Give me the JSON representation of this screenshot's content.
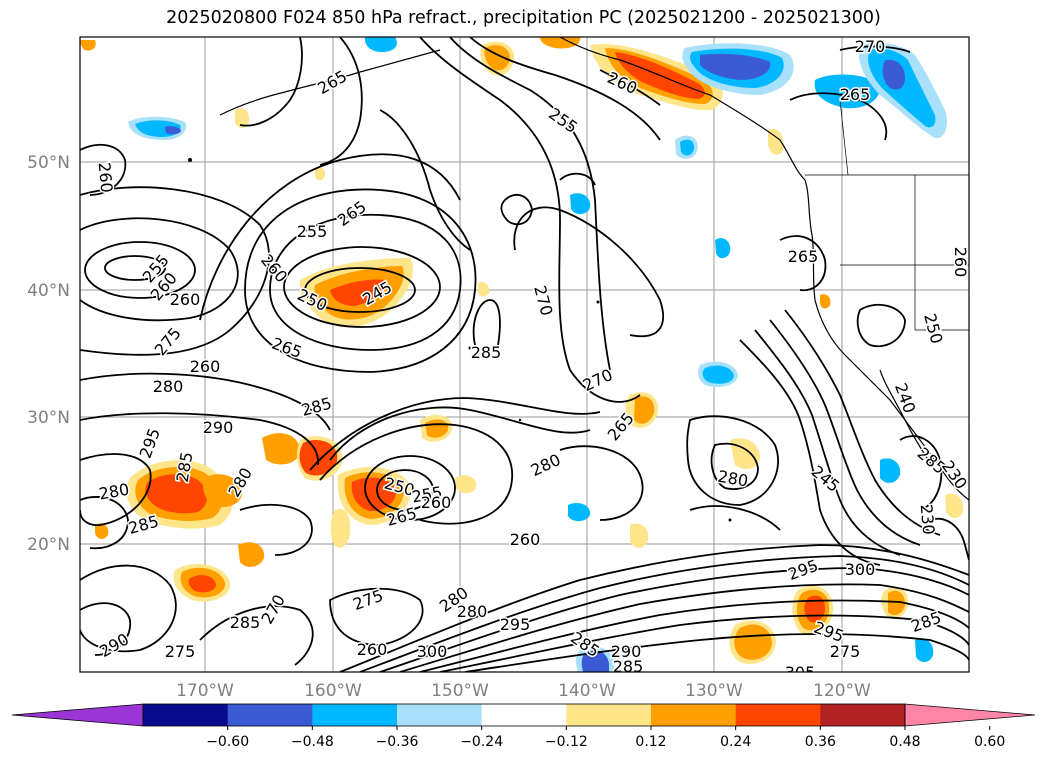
{
  "title": "2025020800 F024 850 hPa refract., precipitation PC (2025021200 - 2025021300)",
  "map": {
    "lon_labels": [
      "170°W",
      "160°W",
      "150°W",
      "140°W",
      "130°W",
      "120°W"
    ],
    "lat_labels": [
      "50°N",
      "40°N",
      "30°N",
      "20°N"
    ],
    "contour_labels": [
      {
        "text": "265"
      },
      {
        "text": "255"
      },
      {
        "text": "260"
      },
      {
        "text": "270"
      },
      {
        "text": "265"
      },
      {
        "text": "260"
      },
      {
        "text": "260"
      },
      {
        "text": "265"
      },
      {
        "text": "255"
      },
      {
        "text": "255"
      },
      {
        "text": "260"
      },
      {
        "text": "260"
      },
      {
        "text": "250"
      },
      {
        "text": "245"
      },
      {
        "text": "270"
      },
      {
        "text": "285"
      },
      {
        "text": "275"
      },
      {
        "text": "260"
      },
      {
        "text": "265"
      },
      {
        "text": "280"
      },
      {
        "text": "285"
      },
      {
        "text": "270"
      },
      {
        "text": "265"
      },
      {
        "text": "290"
      },
      {
        "text": "295"
      },
      {
        "text": "285"
      },
      {
        "text": "280"
      },
      {
        "text": "280"
      },
      {
        "text": "285"
      },
      {
        "text": "250"
      },
      {
        "text": "255"
      },
      {
        "text": "260"
      },
      {
        "text": "265"
      },
      {
        "text": "280"
      },
      {
        "text": "280"
      },
      {
        "text": "245"
      },
      {
        "text": "285"
      },
      {
        "text": "230"
      },
      {
        "text": "230"
      },
      {
        "text": "275"
      },
      {
        "text": "270"
      },
      {
        "text": "280"
      },
      {
        "text": "280"
      },
      {
        "text": "295"
      },
      {
        "text": "285"
      },
      {
        "text": "275"
      },
      {
        "text": "290"
      },
      {
        "text": "260"
      },
      {
        "text": "300"
      },
      {
        "text": "260"
      },
      {
        "text": "285"
      },
      {
        "text": "290"
      },
      {
        "text": "285"
      },
      {
        "text": "295"
      },
      {
        "text": "275"
      },
      {
        "text": "260"
      },
      {
        "text": "295"
      },
      {
        "text": "300"
      },
      {
        "text": "305"
      },
      {
        "text": "285"
      },
      {
        "text": "265"
      },
      {
        "text": "250"
      },
      {
        "text": "240"
      }
    ]
  },
  "colorbar": {
    "ticks": [
      "−0.60",
      "−0.48",
      "−0.36",
      "−0.24",
      "−0.12",
      "0.12",
      "0.24",
      "0.36",
      "0.48",
      "0.60"
    ],
    "colors": [
      "#9b35d6",
      "#0a0a8c",
      "#3b5bd4",
      "#00b8ff",
      "#a9e1fb",
      "#ffffff",
      "#ffe58a",
      "#ffa000",
      "#ff4500",
      "#b22222",
      "#ff85a8"
    ]
  }
}
